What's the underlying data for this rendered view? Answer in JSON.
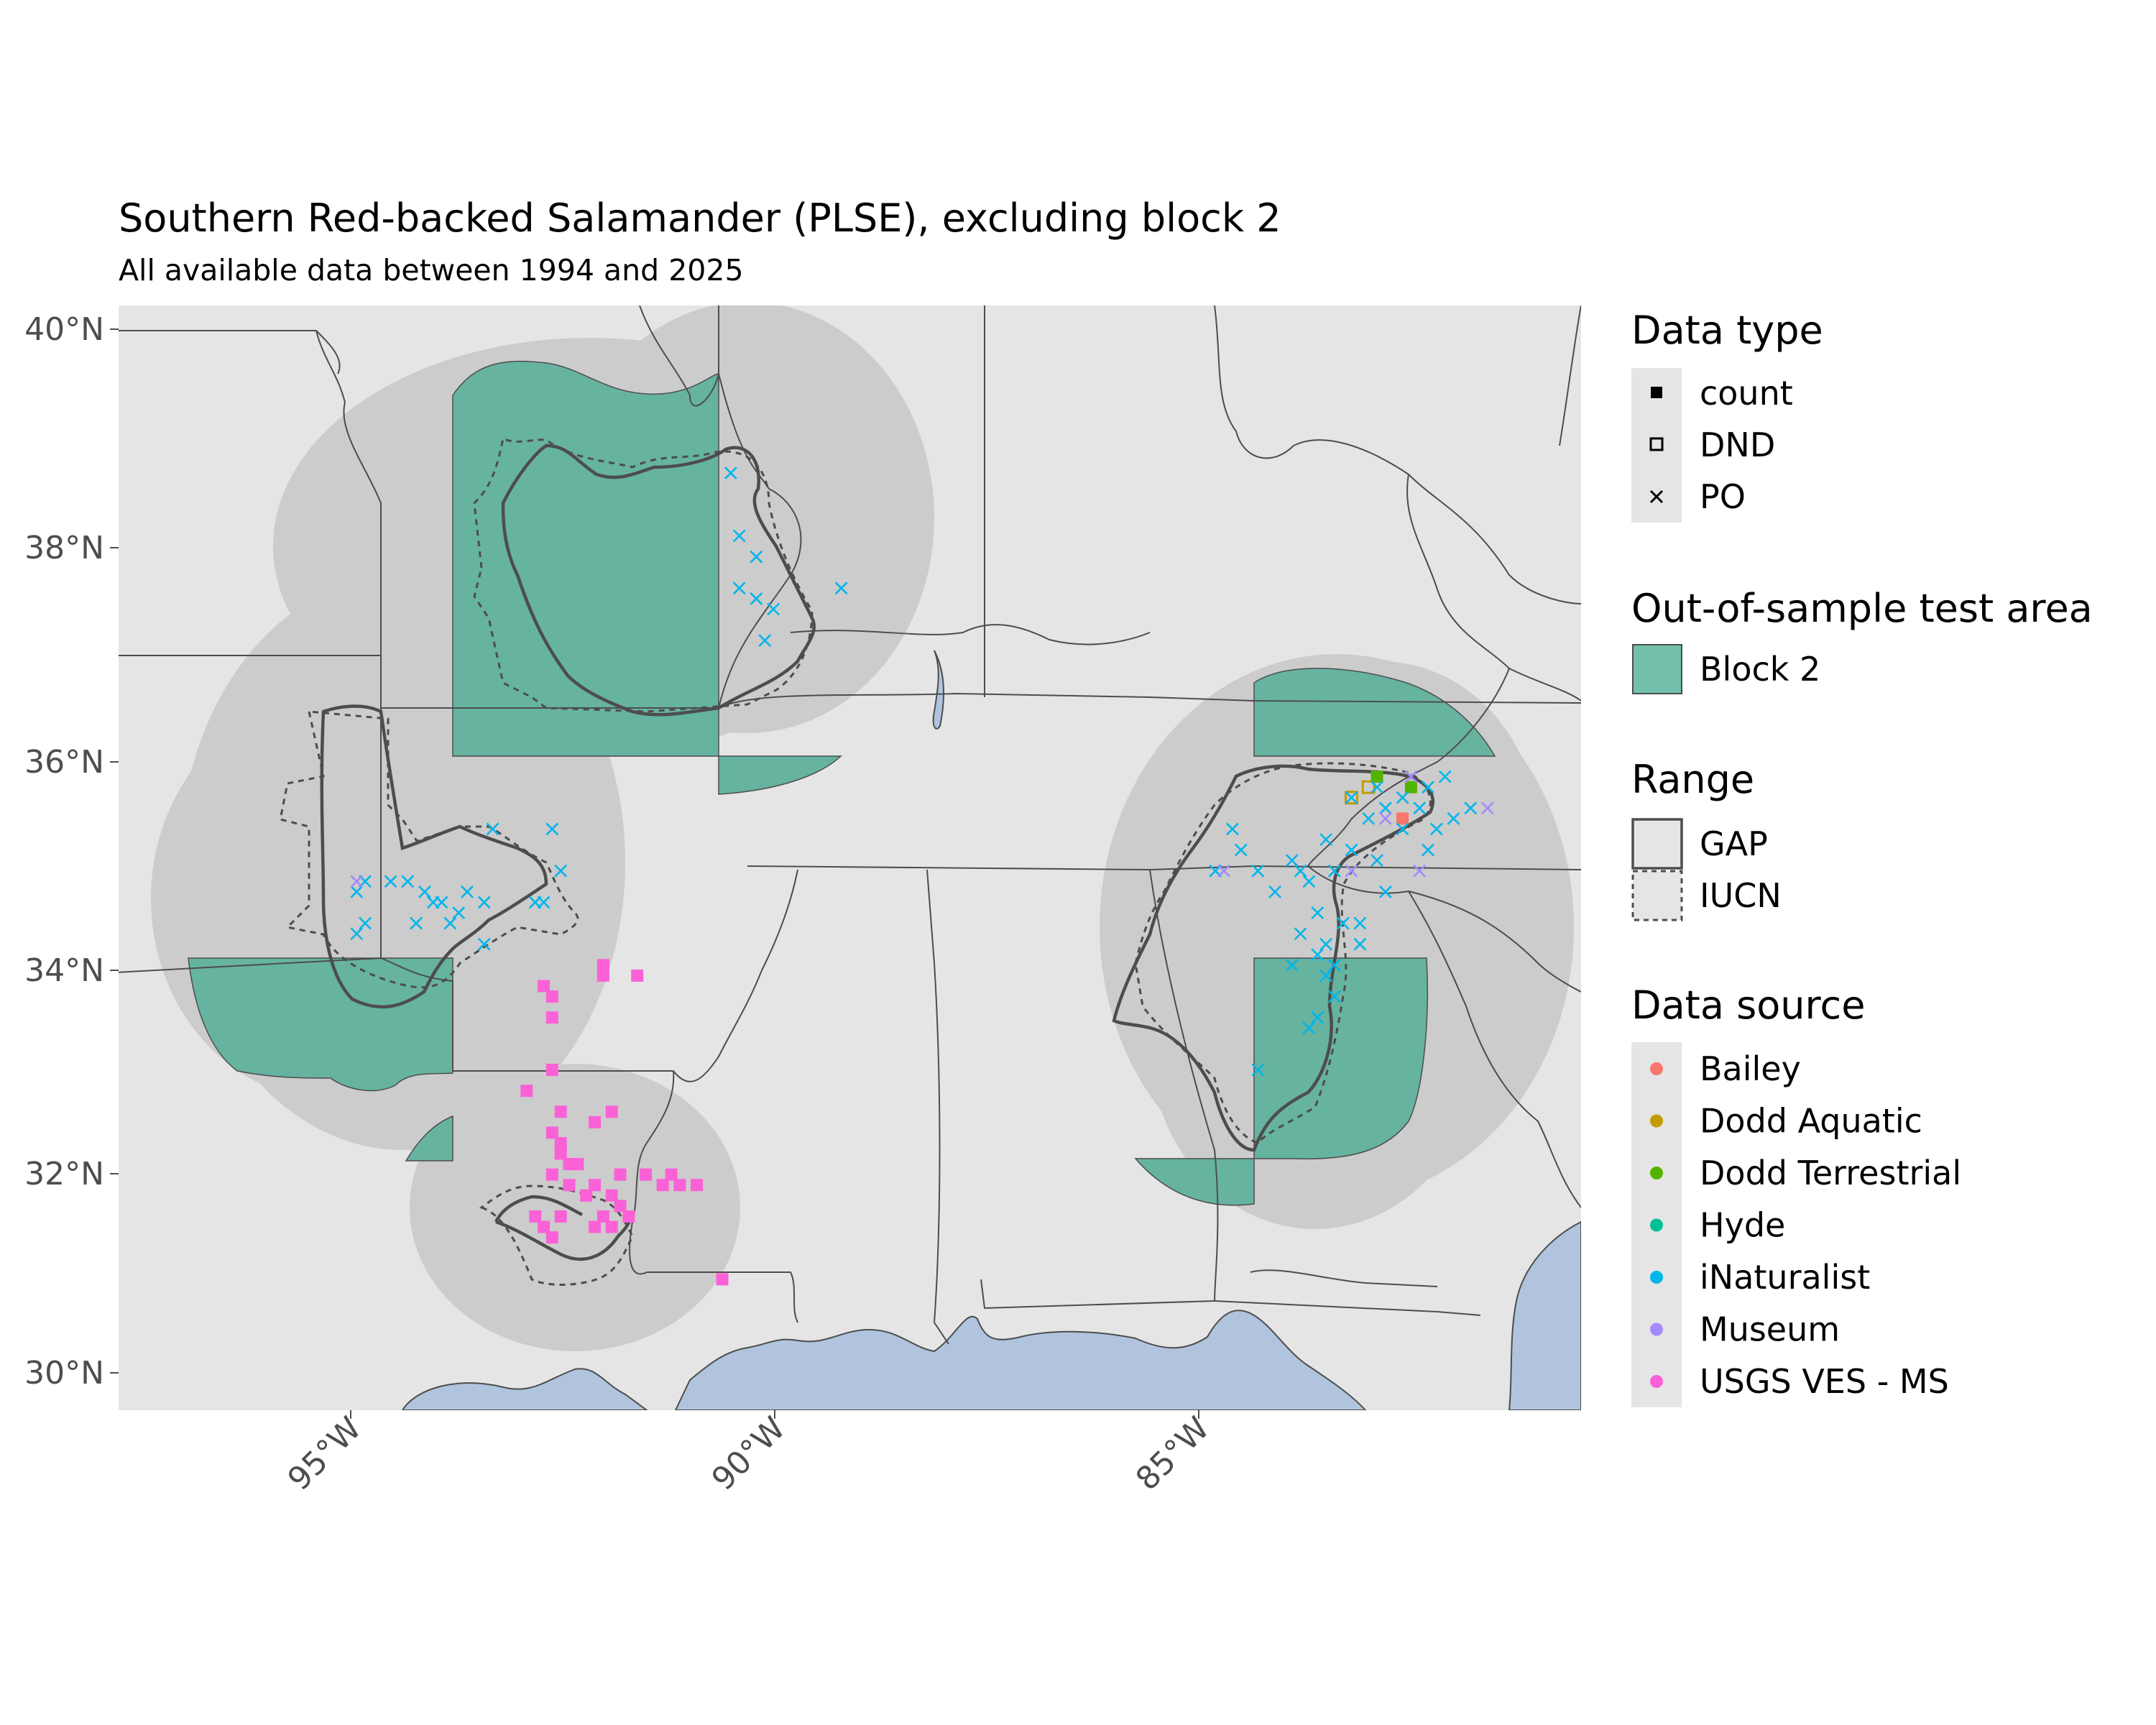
{
  "title": "Southern Red-backed Salamander (PLSE), excluding block 2",
  "subtitle": "All available data between 1994 and 2025",
  "axes": {
    "y_ticks": [
      "40°N",
      "38°N",
      "36°N",
      "34°N",
      "32°N",
      "30°N"
    ],
    "x_ticks": [
      "95°W",
      "90°W",
      "85°W"
    ]
  },
  "legend": {
    "data_type": {
      "title": "Data type",
      "items": [
        "count",
        "DND",
        "PO"
      ]
    },
    "test_area": {
      "title": "Out-of-sample test area",
      "items": [
        "Block 2"
      ],
      "color": "#66b3a0"
    },
    "range": {
      "title": "Range",
      "items": [
        "GAP",
        "IUCN"
      ]
    },
    "data_source": {
      "title": "Data source",
      "items": [
        {
          "label": "Bailey",
          "color": "#f8766d"
        },
        {
          "label": "Dodd Aquatic",
          "color": "#c49a00"
        },
        {
          "label": "Dodd Terrestrial",
          "color": "#53b400"
        },
        {
          "label": "Hyde",
          "color": "#00c094"
        },
        {
          "label": "iNaturalist",
          "color": "#00b6eb"
        },
        {
          "label": "Museum",
          "color": "#a58aff"
        },
        {
          "label": "USGS VES - MS",
          "color": "#fb61d7"
        }
      ]
    }
  },
  "colors": {
    "panel_bg": "#e5e5e5",
    "buffer": "#cccccc",
    "block2": "#66b3a0",
    "water": "#b0c4de",
    "border": "#4d4d4d",
    "inaturalist": "#00b6eb",
    "museum": "#a58aff",
    "usgs": "#fb61d7",
    "dodd_aquatic": "#c49a00",
    "dodd_terrestrial": "#53b400",
    "bailey": "#f8766d"
  },
  "map_data": {
    "projection": "lon/lat",
    "lon_range": [
      -97.8,
      -80.6
    ],
    "lat_range": [
      29.65,
      40.2
    ],
    "observations": {
      "inaturalist_po": [
        [
          -90.6,
          38.6
        ],
        [
          -90.5,
          38.0
        ],
        [
          -90.3,
          37.8
        ],
        [
          -90.5,
          37.5
        ],
        [
          -90.3,
          37.4
        ],
        [
          -90.1,
          37.3
        ],
        [
          -90.2,
          37.0
        ],
        [
          -89.3,
          37.5
        ],
        [
          -95.0,
          34.6
        ],
        [
          -94.9,
          34.7
        ],
        [
          -94.6,
          34.7
        ],
        [
          -94.4,
          34.7
        ],
        [
          -94.2,
          34.6
        ],
        [
          -94.0,
          34.5
        ],
        [
          -93.8,
          34.4
        ],
        [
          -93.7,
          34.6
        ],
        [
          -93.5,
          34.5
        ],
        [
          -93.4,
          35.2
        ],
        [
          -92.9,
          34.5
        ],
        [
          -92.6,
          34.8
        ],
        [
          -92.7,
          35.2
        ],
        [
          -94.9,
          34.3
        ],
        [
          -95.0,
          34.2
        ],
        [
          -94.3,
          34.3
        ],
        [
          -93.9,
          34.3
        ],
        [
          -93.5,
          34.1
        ],
        [
          -94.1,
          34.5
        ],
        [
          -92.8,
          34.5
        ],
        [
          -84.7,
          35.2
        ],
        [
          -84.6,
          35.0
        ],
        [
          -84.4,
          34.8
        ],
        [
          -84.2,
          34.6
        ],
        [
          -84.0,
          34.9
        ],
        [
          -83.8,
          34.7
        ],
        [
          -83.6,
          35.1
        ],
        [
          -83.5,
          34.8
        ],
        [
          -83.3,
          35.0
        ],
        [
          -83.1,
          35.3
        ],
        [
          -82.9,
          35.4
        ],
        [
          -82.7,
          35.5
        ],
        [
          -82.5,
          35.4
        ],
        [
          -82.3,
          35.2
        ],
        [
          -82.1,
          35.3
        ],
        [
          -81.9,
          35.4
        ],
        [
          -82.4,
          35.6
        ],
        [
          -82.2,
          35.7
        ],
        [
          -83.7,
          34.4
        ],
        [
          -83.6,
          34.1
        ],
        [
          -83.4,
          34.3
        ],
        [
          -83.2,
          34.1
        ],
        [
          -83.5,
          33.9
        ],
        [
          -83.6,
          33.8
        ],
        [
          -83.5,
          33.6
        ],
        [
          -83.7,
          33.4
        ],
        [
          -83.8,
          33.3
        ],
        [
          -84.0,
          33.9
        ],
        [
          -84.4,
          32.9
        ],
        [
          -83.9,
          34.2
        ],
        [
          -83.7,
          34.0
        ],
        [
          -83.2,
          34.3
        ],
        [
          -82.9,
          34.6
        ],
        [
          -83.0,
          34.9
        ],
        [
          -83.3,
          35.5
        ],
        [
          -83.0,
          35.6
        ],
        [
          -82.7,
          35.2
        ],
        [
          -82.4,
          35.0
        ],
        [
          -84.9,
          34.8
        ],
        [
          -83.9,
          34.8
        ]
      ],
      "museum_po": [
        [
          -95.0,
          34.7
        ],
        [
          -84.8,
          34.8
        ],
        [
          -82.9,
          35.3
        ],
        [
          -82.6,
          35.7
        ],
        [
          -81.7,
          35.4
        ],
        [
          -82.5,
          34.8
        ],
        [
          -83.3,
          34.8
        ]
      ],
      "usgs_count": [
        [
          -92.8,
          33.7
        ],
        [
          -92.7,
          33.6
        ],
        [
          -92.7,
          33.4
        ],
        [
          -92.1,
          33.8
        ],
        [
          -92.1,
          33.9
        ],
        [
          -91.7,
          33.8
        ],
        [
          -93.0,
          32.7
        ],
        [
          -92.7,
          32.9
        ],
        [
          -92.6,
          32.5
        ],
        [
          -92.2,
          32.4
        ],
        [
          -92.0,
          32.5
        ],
        [
          -92.7,
          32.3
        ],
        [
          -92.6,
          32.1
        ],
        [
          -92.5,
          32.0
        ],
        [
          -92.7,
          31.9
        ],
        [
          -92.5,
          31.8
        ],
        [
          -92.3,
          31.7
        ],
        [
          -92.2,
          31.8
        ],
        [
          -92.0,
          31.7
        ],
        [
          -91.9,
          31.6
        ],
        [
          -92.1,
          31.5
        ],
        [
          -92.2,
          31.4
        ],
        [
          -91.8,
          31.5
        ],
        [
          -92.9,
          31.5
        ],
        [
          -92.8,
          31.4
        ],
        [
          -92.6,
          31.5
        ],
        [
          -92.7,
          31.3
        ],
        [
          -91.6,
          31.9
        ],
        [
          -91.4,
          31.8
        ],
        [
          -91.2,
          31.8
        ],
        [
          -91.0,
          31.8
        ],
        [
          -91.3,
          31.9
        ],
        [
          -92.6,
          32.2
        ],
        [
          -92.4,
          32.0
        ],
        [
          -92.0,
          31.4
        ],
        [
          -91.9,
          31.9
        ],
        [
          -90.7,
          30.9
        ]
      ],
      "dodd_aquatic_dnd": [
        [
          -83.3,
          35.5
        ],
        [
          -83.1,
          35.6
        ]
      ],
      "dodd_terrestrial_count": [
        [
          -83.0,
          35.7
        ],
        [
          -82.6,
          35.6
        ]
      ],
      "bailey_count": [
        [
          -82.7,
          35.3
        ]
      ]
    }
  }
}
